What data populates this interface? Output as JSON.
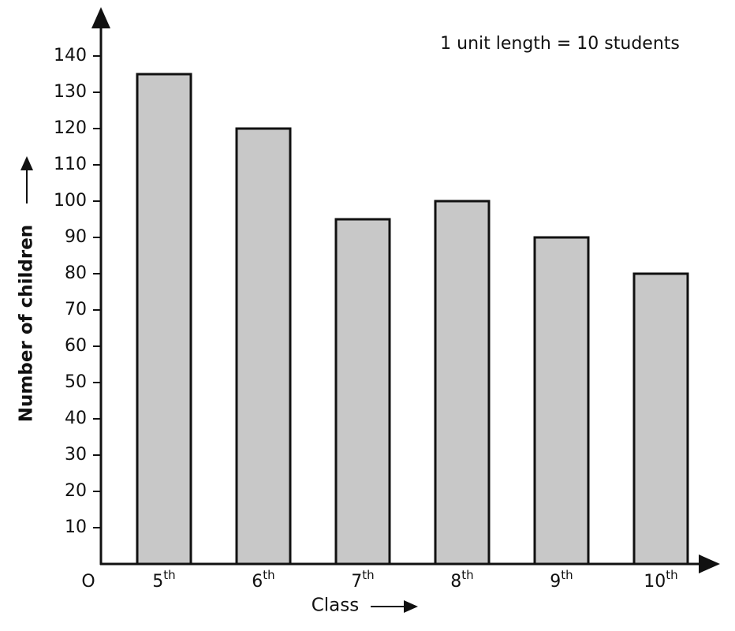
{
  "chart_data": {
    "type": "bar",
    "annotation": "1 unit length = 10 students",
    "xlabel": "Class",
    "ylabel": "Number of children",
    "origin_label": "O",
    "categories": [
      "5th",
      "6th",
      "7th",
      "8th",
      "9th",
      "10th"
    ],
    "values": [
      135,
      120,
      95,
      100,
      90,
      80
    ],
    "color": "#c8c8c8",
    "ylim": [
      0,
      152
    ],
    "yticks": [
      10,
      20,
      30,
      40,
      50,
      60,
      70,
      80,
      90,
      100,
      110,
      120,
      130,
      140
    ],
    "grid": false
  }
}
